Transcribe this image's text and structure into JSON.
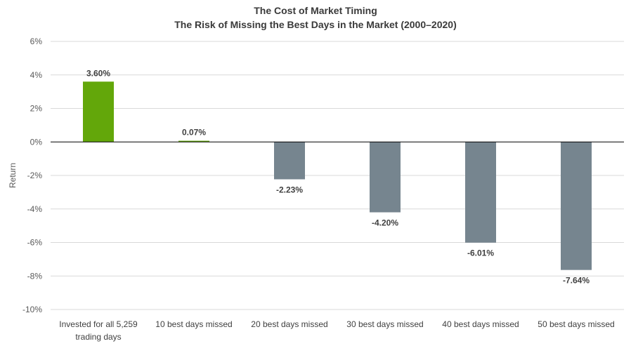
{
  "chart_data": {
    "type": "bar",
    "title": "The Cost of Market Timing",
    "subtitle": "The Risk of Missing the Best Days in the Market (2000–2020)",
    "xlabel": "",
    "ylabel": "Return",
    "ylim": [
      -10,
      6
    ],
    "y_ticks": [
      6,
      4,
      2,
      0,
      -2,
      -4,
      -6,
      -8,
      -10
    ],
    "y_tick_labels": [
      "6%",
      "4%",
      "2%",
      "0%",
      "-2%",
      "-4%",
      "-6%",
      "-8%",
      "-10%"
    ],
    "grid": true,
    "categories": [
      [
        "Invested for all 5,259",
        "trading days"
      ],
      [
        "10 best days missed"
      ],
      [
        "20 best days missed"
      ],
      [
        "30 best days missed"
      ],
      [
        "40 best days missed"
      ],
      [
        "50 best days missed"
      ]
    ],
    "values": [
      3.6,
      0.07,
      -2.23,
      -4.2,
      -6.01,
      -7.64
    ],
    "data_labels": [
      "3.60%",
      "0.07%",
      "-2.23%",
      "-4.20%",
      "-6.01%",
      "-7.64%"
    ],
    "colors": {
      "positive": "#63a70a",
      "negative": "#76858f",
      "grid": "#d9d9d9",
      "zero_line": "#000000"
    }
  }
}
